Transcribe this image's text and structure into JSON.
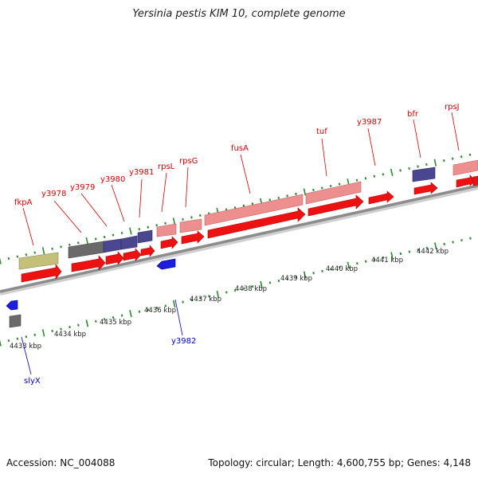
{
  "header": {
    "title": "Yersinia pestis KIM 10, complete genome"
  },
  "footer": {
    "accession": "Accession: NC_004088",
    "stats": "Topology: circular; Length: 4,600,755 bp; Genes: 4,148"
  },
  "colors": {
    "backbone": "#8c8c8c",
    "cds_forward": "#ee1111",
    "gene_forward": "#ee8f8f",
    "gene_rna": "#4a4790",
    "gene_other": "#6a6a6a",
    "gene_olive": "#c4c07a",
    "cds_reverse": "#1d1de0",
    "tick_green": "#2c8a2c",
    "label_forward": "#dd0000",
    "label_reverse": "#0000cc"
  },
  "ruler": {
    "unit": "kbp",
    "labels": [
      "4433 kbp",
      "4434 kbp",
      "4435 kbp",
      "4436 kbp",
      "4437 kbp",
      "4438 kbp",
      "4439 kbp",
      "4440 kbp",
      "4441 kbp",
      "4442 kbp"
    ]
  },
  "gene_labels": {
    "forward": [
      "fkpA",
      "y3978",
      "y3979",
      "y3980",
      "y3981",
      "rpsL",
      "rpsG",
      "fusA",
      "tuf",
      "y3987",
      "bfr",
      "rpsJ"
    ],
    "reverse": [
      "y3982",
      "slyX"
    ]
  },
  "features": {
    "forward_top": [
      {
        "kind": "gene_olive"
      },
      {
        "kind": "gene_other"
      },
      {
        "kind": "gene_rna"
      },
      {
        "kind": "gene_rna"
      },
      {
        "kind": "gene_rna"
      },
      {
        "kind": "gene_forward"
      },
      {
        "kind": "gene_forward"
      },
      {
        "kind": "gene_forward"
      },
      {
        "kind": "gene_forward"
      },
      {
        "kind": "gene_rna"
      },
      {
        "kind": "gene_forward"
      }
    ],
    "forward_cds_count": 12,
    "reverse": [
      {
        "kind": "cds_reverse"
      },
      {
        "kind": "cds_reverse"
      },
      {
        "kind": "gene_other"
      }
    ]
  }
}
